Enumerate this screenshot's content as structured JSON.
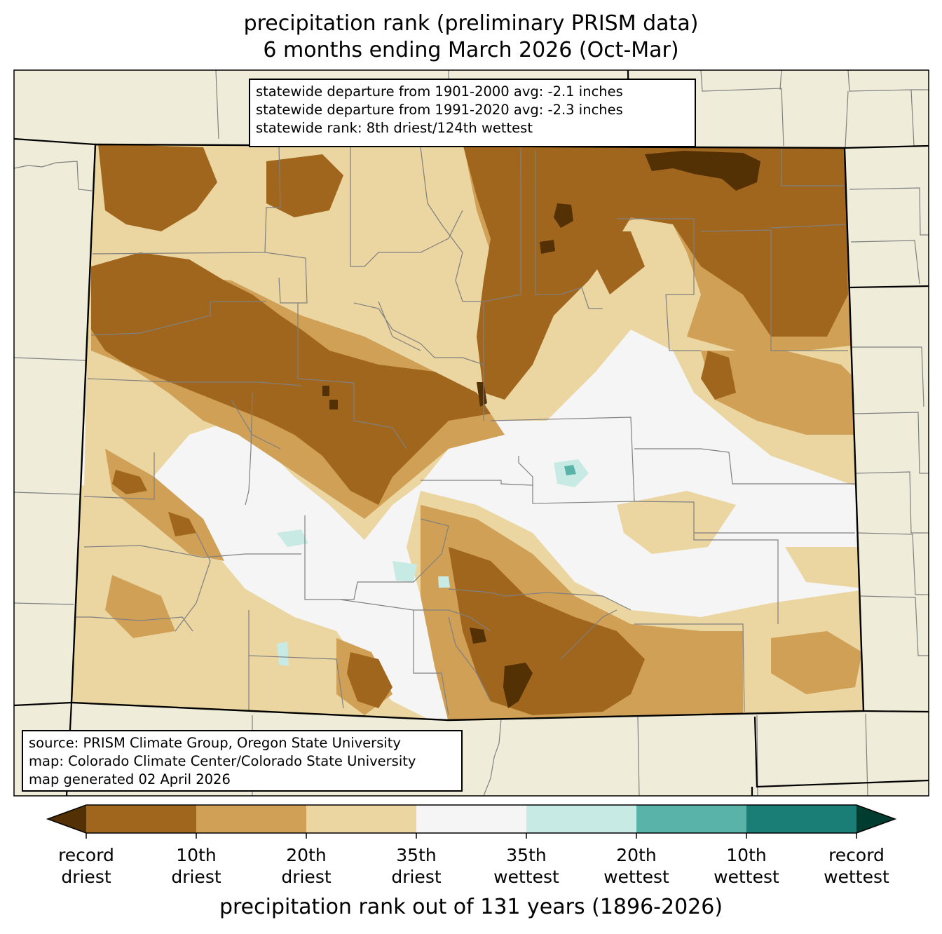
{
  "title": {
    "line1": "precipitation rank (preliminary PRISM data)",
    "line2": "6 months ending March 2026 (Oct-Mar)"
  },
  "stats": {
    "line1": "statewide departure from 1901-2000 avg: -2.1 inches",
    "line2": "statewide departure from 1991-2020 avg: -2.3 inches",
    "line3": "statewide rank: 8th driest/124th wettest"
  },
  "source": {
    "line1": "source: PRISM Climate Group, Oregon State University",
    "line2": "map: Colorado Climate Center/Colorado State University",
    "line3": "map generated 02 April 2026"
  },
  "colorbar": {
    "title": "precipitation rank out of 131 years (1896-2026)",
    "bins": [
      {
        "color": "#543005"
      },
      {
        "color": "#a0661e"
      },
      {
        "color": "#cfa056"
      },
      {
        "color": "#ebd5a0"
      },
      {
        "color": "#f4f5f4"
      },
      {
        "color": "#c7eae4"
      },
      {
        "color": "#5ab3a8"
      },
      {
        "color": "#1a7d76"
      },
      {
        "color": "#003c30"
      }
    ],
    "ticks": [
      {
        "top": "record",
        "bottom": "driest"
      },
      {
        "top": "10th",
        "bottom": "driest"
      },
      {
        "top": "20th",
        "bottom": "driest"
      },
      {
        "top": "35th",
        "bottom": "driest"
      },
      {
        "top": "35th",
        "bottom": "wettest"
      },
      {
        "top": "20th",
        "bottom": "wettest"
      },
      {
        "top": "10th",
        "bottom": "wettest"
      },
      {
        "top": "record",
        "bottom": "wettest"
      }
    ]
  },
  "map": {
    "background": "#efedda",
    "state_outline_color": "#000000",
    "county_line_color": "#808080"
  }
}
